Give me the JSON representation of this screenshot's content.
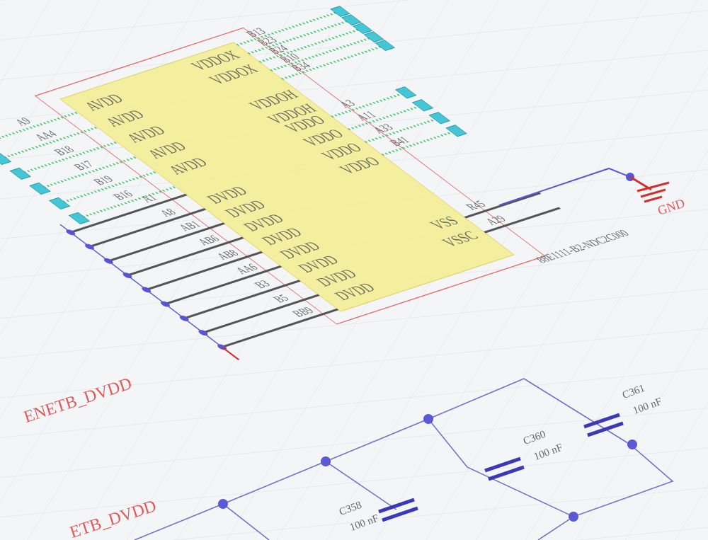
{
  "chip": {
    "ref": "88E1111-B2-NDC2C000",
    "avdd_pins": [
      "AVDD",
      "AVDD",
      "AVDD",
      "AVDD",
      "AVDD"
    ],
    "vddox_pins": [
      "VDDOX",
      "VDDOX"
    ],
    "vddoh_pins": [
      "VDDOH",
      "VDDOH"
    ],
    "vddo_pins": [
      "VDDO",
      "VDDO",
      "VDDO",
      "VDDO"
    ],
    "dvdd_pins": [
      "DVDD",
      "DVDD",
      "DVDD",
      "DVDD",
      "DVDD",
      "DVDD",
      "DVDD",
      "DVDD"
    ],
    "vss_pins": [
      "VSS",
      "VSSC"
    ]
  },
  "left_pin_numbers": [
    "A9",
    "AA4",
    "B18",
    "B17",
    "B19",
    "B16"
  ],
  "top_pin_numbers": [
    "B13",
    "B23",
    "B24",
    "B10",
    "B34"
  ],
  "right_pin_numbers": [
    "A3",
    "A11",
    "A33",
    "B41"
  ],
  "bottom_pin_numbers": [
    "A1",
    "A8",
    "AB1",
    "AB6",
    "AB8",
    "AA6",
    "B3",
    "B5",
    "BB9"
  ],
  "ground_pin_numbers": [
    "R45",
    "A29"
  ],
  "net_labels": {
    "gnd": "GND",
    "dvdd": "ENETB_DVDD",
    "dvdd_lower": "ETB_DVDD"
  },
  "capacitors": [
    {
      "ref": "C358",
      "value": "100 nF"
    },
    {
      "ref": "C360",
      "value": "100 nF"
    },
    {
      "ref": "C361",
      "value": "100 nF"
    }
  ]
}
